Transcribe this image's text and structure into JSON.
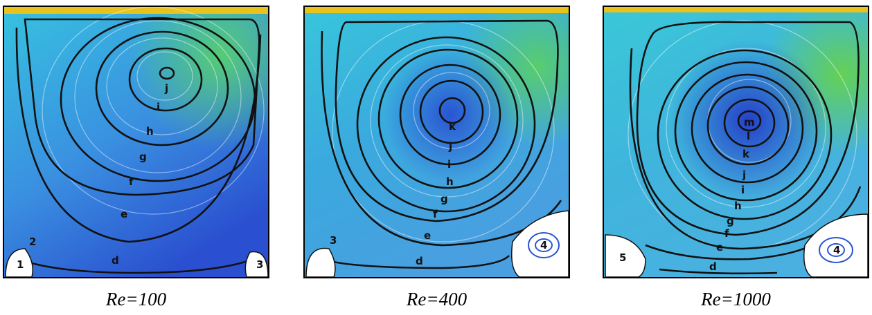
{
  "panels": [
    {
      "caption": "Re=100",
      "contour_labels": [
        "j",
        "i",
        "h",
        "g",
        "f",
        "e",
        "d",
        "2",
        "1",
        "3"
      ]
    },
    {
      "caption": "Re=400",
      "contour_labels": [
        "k",
        "j",
        "i",
        "h",
        "g",
        "f",
        "e",
        "d",
        "3",
        "4"
      ]
    },
    {
      "caption": "Re=1000",
      "contour_labels": [
        "m",
        "l",
        "k",
        "j",
        "i",
        "h",
        "g",
        "f",
        "e",
        "d",
        "5",
        "4"
      ]
    }
  ],
  "colors": {
    "lid_hot": "#e9c21b",
    "fast_flow": "#4ed07a",
    "mid_flow": "#38c4d9",
    "slow_flow": "#2a5fd8",
    "contour_line": "#111111"
  }
}
